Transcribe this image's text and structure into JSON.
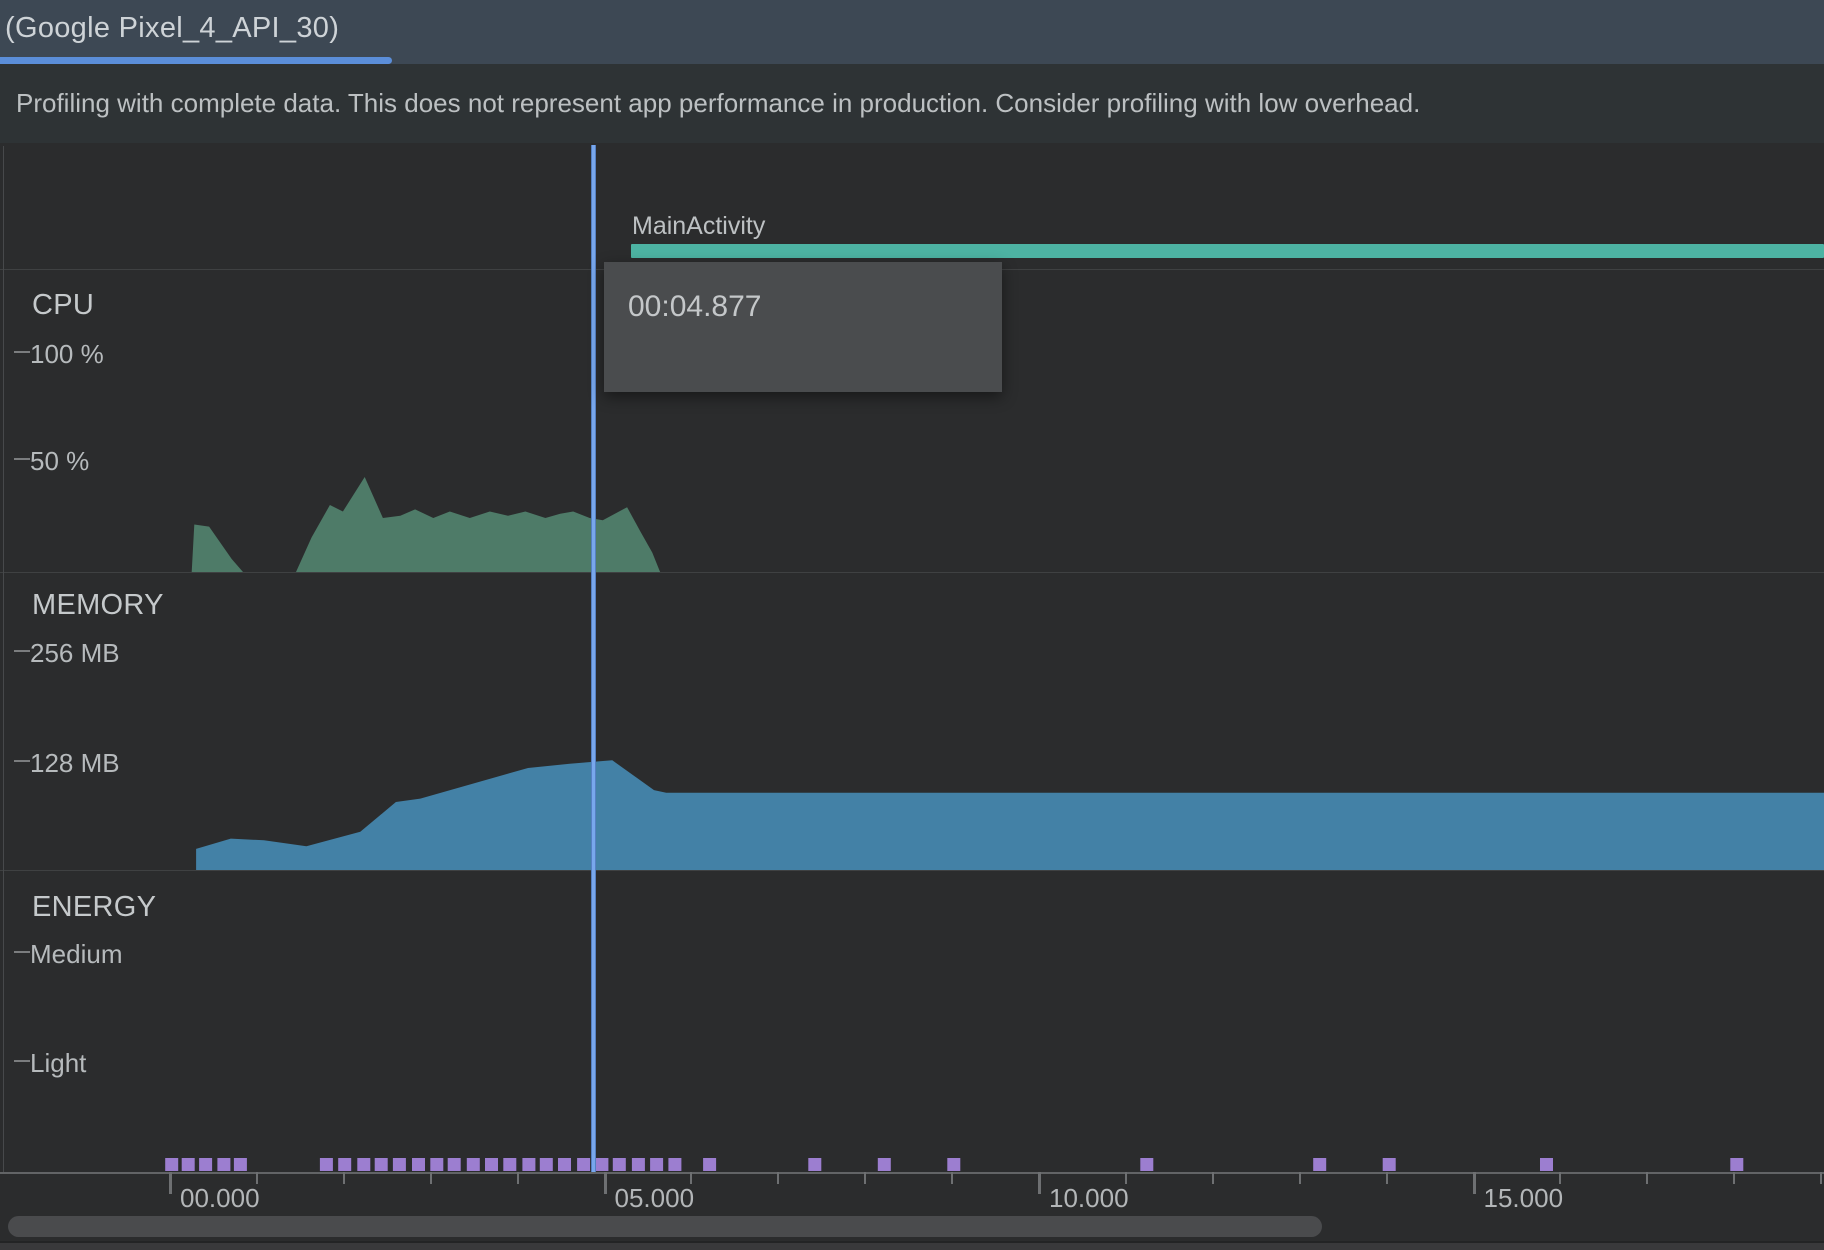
{
  "tab": {
    "title": "(Google Pixel_4_API_30)"
  },
  "banner": {
    "text": "Profiling with complete data. This does not represent app performance in production. Consider profiling with low overhead."
  },
  "event_timeline": {
    "activity_label": "MainActivity",
    "activity_start_s": 5.3
  },
  "playhead": {
    "time_s": 4.877
  },
  "tooltip": {
    "time": "00:04.877"
  },
  "sections": [
    {
      "name": "CPU",
      "ticks": [
        "100 %",
        "50 %"
      ]
    },
    {
      "name": "MEMORY",
      "ticks": [
        "256 MB",
        "128 MB"
      ]
    },
    {
      "name": "ENERGY",
      "ticks": [
        "Medium",
        "Light"
      ]
    }
  ],
  "time_axis": {
    "labels": [
      "00.000",
      "05.000",
      "10.000",
      "15.000"
    ],
    "major_s": [
      0,
      5,
      10,
      15
    ],
    "minor_s": [
      1,
      2,
      3,
      4,
      6,
      7,
      8,
      9,
      11,
      12,
      13,
      14,
      16,
      17,
      18,
      19
    ]
  },
  "colors": {
    "background": "#2B2C2D",
    "tab_bar_bg": "#3D4854",
    "tab_underline": "#5B8ED9",
    "banner_bg": "#2E3335",
    "cpu_area": "#4E7B68",
    "memory_area": "#4381A6",
    "activity_bar": "#4DB3A3",
    "energy_dot": "#9C7ED0",
    "playhead": "#78A7EC",
    "tooltip_bg": "#4A4C4E"
  },
  "chart_data": [
    {
      "type": "area",
      "name": "cpu_usage",
      "ylabel": "CPU %",
      "ylim": [
        0,
        100
      ],
      "x_unit": "seconds",
      "points": [
        [
          0.25,
          0
        ],
        [
          0.28,
          22
        ],
        [
          0.45,
          21
        ],
        [
          0.71,
          6
        ],
        [
          0.84,
          0
        ],
        [
          1.45,
          0
        ],
        [
          1.63,
          16
        ],
        [
          1.84,
          31
        ],
        [
          1.99,
          28
        ],
        [
          2.24,
          44
        ],
        [
          2.45,
          25
        ],
        [
          2.65,
          26
        ],
        [
          2.82,
          29
        ],
        [
          3.03,
          25
        ],
        [
          3.22,
          28
        ],
        [
          3.45,
          25
        ],
        [
          3.68,
          28
        ],
        [
          3.89,
          26
        ],
        [
          4.09,
          28
        ],
        [
          4.32,
          25
        ],
        [
          4.49,
          27
        ],
        [
          4.64,
          28
        ],
        [
          4.83,
          25
        ],
        [
          4.98,
          24
        ],
        [
          5.12,
          27
        ],
        [
          5.26,
          30
        ],
        [
          5.41,
          19
        ],
        [
          5.55,
          9
        ],
        [
          5.64,
          0
        ]
      ]
    },
    {
      "type": "area",
      "name": "memory_usage",
      "ylabel": "Memory MB",
      "ylim": [
        0,
        256
      ],
      "x_unit": "seconds",
      "points": [
        [
          0.3,
          0
        ],
        [
          0.3,
          26
        ],
        [
          0.7,
          38
        ],
        [
          1.08,
          36
        ],
        [
          1.57,
          29
        ],
        [
          2.19,
          46
        ],
        [
          2.6,
          81
        ],
        [
          2.88,
          85
        ],
        [
          4.12,
          121
        ],
        [
          4.6,
          126
        ],
        [
          5.09,
          130
        ],
        [
          5.57,
          95
        ],
        [
          5.71,
          92
        ],
        [
          19.1,
          92
        ]
      ]
    },
    {
      "type": "scatter",
      "name": "energy_events",
      "marker": "square",
      "x_unit": "seconds",
      "x": [
        0.02,
        0.21,
        0.41,
        0.62,
        0.81,
        1.8,
        2.01,
        2.23,
        2.43,
        2.64,
        2.86,
        3.07,
        3.27,
        3.49,
        3.7,
        3.91,
        4.13,
        4.33,
        4.54,
        4.76,
        4.97,
        5.17,
        5.39,
        5.6,
        5.81,
        6.21,
        7.42,
        8.22,
        9.02,
        11.24,
        13.23,
        14.03,
        15.84,
        18.03
      ]
    }
  ]
}
